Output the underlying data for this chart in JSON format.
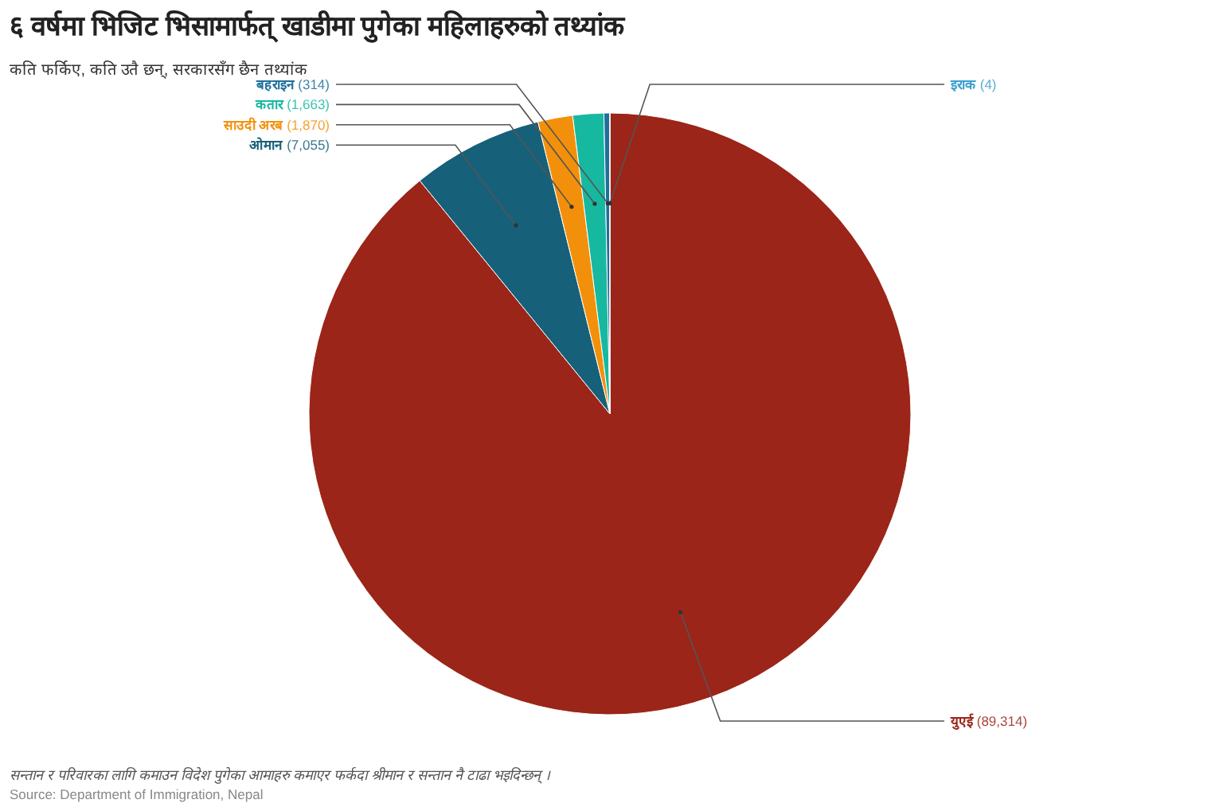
{
  "chart_data": {
    "type": "pie",
    "title": "६ वर्षमा भिजिट भिसामार्फत् खाडीमा पुगेका महिलाहरुको तथ्यांक",
    "subtitle": "कति फर्किए, कति उतै छन्, सरकारसँग छैन तथ्यांक",
    "categories": [
      "युएई",
      "ओमान",
      "साउदी अरब",
      "कतार",
      "बहराइन",
      "इराक"
    ],
    "values": [
      89314,
      7055,
      1870,
      1663,
      314,
      4
    ],
    "value_labels": [
      "(89,314)",
      "(7,055)",
      "(1,870)",
      "(1,663)",
      "(314)",
      "(4)"
    ],
    "colors": [
      "#9b2518",
      "#17607a",
      "#f3900b",
      "#17b8a0",
      "#1f6f9a",
      "#3a9fd0"
    ],
    "legend": false,
    "annotations": [
      "सन्तान र परिवारका लागि कमाउन विदेश पुगेका आमाहरु कमाएर फर्कदा श्रीमान र सन्तान नै टाढा भइदिन्छन् ।",
      "Source: Department of Immigration, Nepal"
    ]
  }
}
